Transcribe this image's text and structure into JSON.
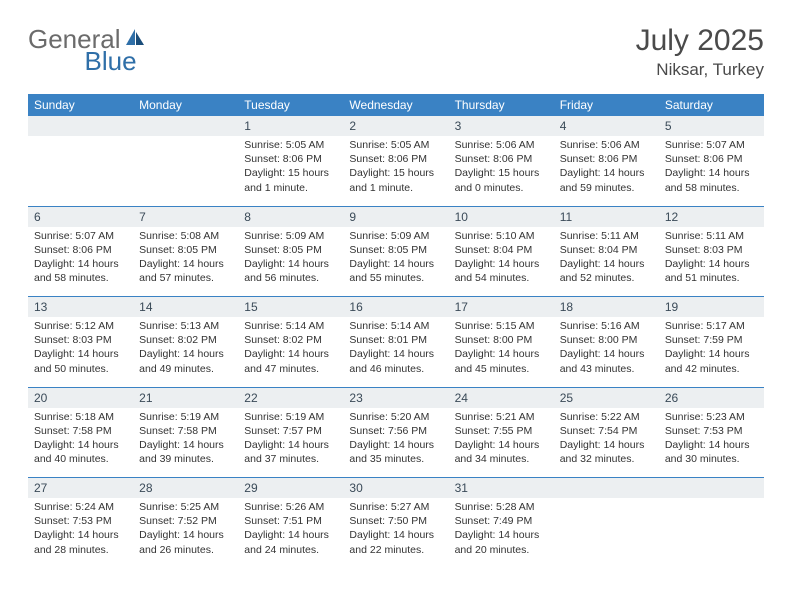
{
  "logo": {
    "general": "General",
    "blue": "Blue"
  },
  "title": "July 2025",
  "location": "Niksar, Turkey",
  "colors": {
    "header_bg": "#3a82c4",
    "header_text": "#ffffff",
    "daynum_bg": "#eceff1",
    "body_text": "#333333",
    "logo_gray": "#6b6b6b",
    "logo_blue": "#2f6fa8"
  },
  "dow": [
    "Sunday",
    "Monday",
    "Tuesday",
    "Wednesday",
    "Thursday",
    "Friday",
    "Saturday"
  ],
  "weeks": [
    [
      null,
      null,
      {
        "n": "1",
        "sr": "Sunrise: 5:05 AM",
        "ss": "Sunset: 8:06 PM",
        "dl": "Daylight: 15 hours and 1 minute."
      },
      {
        "n": "2",
        "sr": "Sunrise: 5:05 AM",
        "ss": "Sunset: 8:06 PM",
        "dl": "Daylight: 15 hours and 1 minute."
      },
      {
        "n": "3",
        "sr": "Sunrise: 5:06 AM",
        "ss": "Sunset: 8:06 PM",
        "dl": "Daylight: 15 hours and 0 minutes."
      },
      {
        "n": "4",
        "sr": "Sunrise: 5:06 AM",
        "ss": "Sunset: 8:06 PM",
        "dl": "Daylight: 14 hours and 59 minutes."
      },
      {
        "n": "5",
        "sr": "Sunrise: 5:07 AM",
        "ss": "Sunset: 8:06 PM",
        "dl": "Daylight: 14 hours and 58 minutes."
      }
    ],
    [
      {
        "n": "6",
        "sr": "Sunrise: 5:07 AM",
        "ss": "Sunset: 8:06 PM",
        "dl": "Daylight: 14 hours and 58 minutes."
      },
      {
        "n": "7",
        "sr": "Sunrise: 5:08 AM",
        "ss": "Sunset: 8:05 PM",
        "dl": "Daylight: 14 hours and 57 minutes."
      },
      {
        "n": "8",
        "sr": "Sunrise: 5:09 AM",
        "ss": "Sunset: 8:05 PM",
        "dl": "Daylight: 14 hours and 56 minutes."
      },
      {
        "n": "9",
        "sr": "Sunrise: 5:09 AM",
        "ss": "Sunset: 8:05 PM",
        "dl": "Daylight: 14 hours and 55 minutes."
      },
      {
        "n": "10",
        "sr": "Sunrise: 5:10 AM",
        "ss": "Sunset: 8:04 PM",
        "dl": "Daylight: 14 hours and 54 minutes."
      },
      {
        "n": "11",
        "sr": "Sunrise: 5:11 AM",
        "ss": "Sunset: 8:04 PM",
        "dl": "Daylight: 14 hours and 52 minutes."
      },
      {
        "n": "12",
        "sr": "Sunrise: 5:11 AM",
        "ss": "Sunset: 8:03 PM",
        "dl": "Daylight: 14 hours and 51 minutes."
      }
    ],
    [
      {
        "n": "13",
        "sr": "Sunrise: 5:12 AM",
        "ss": "Sunset: 8:03 PM",
        "dl": "Daylight: 14 hours and 50 minutes."
      },
      {
        "n": "14",
        "sr": "Sunrise: 5:13 AM",
        "ss": "Sunset: 8:02 PM",
        "dl": "Daylight: 14 hours and 49 minutes."
      },
      {
        "n": "15",
        "sr": "Sunrise: 5:14 AM",
        "ss": "Sunset: 8:02 PM",
        "dl": "Daylight: 14 hours and 47 minutes."
      },
      {
        "n": "16",
        "sr": "Sunrise: 5:14 AM",
        "ss": "Sunset: 8:01 PM",
        "dl": "Daylight: 14 hours and 46 minutes."
      },
      {
        "n": "17",
        "sr": "Sunrise: 5:15 AM",
        "ss": "Sunset: 8:00 PM",
        "dl": "Daylight: 14 hours and 45 minutes."
      },
      {
        "n": "18",
        "sr": "Sunrise: 5:16 AM",
        "ss": "Sunset: 8:00 PM",
        "dl": "Daylight: 14 hours and 43 minutes."
      },
      {
        "n": "19",
        "sr": "Sunrise: 5:17 AM",
        "ss": "Sunset: 7:59 PM",
        "dl": "Daylight: 14 hours and 42 minutes."
      }
    ],
    [
      {
        "n": "20",
        "sr": "Sunrise: 5:18 AM",
        "ss": "Sunset: 7:58 PM",
        "dl": "Daylight: 14 hours and 40 minutes."
      },
      {
        "n": "21",
        "sr": "Sunrise: 5:19 AM",
        "ss": "Sunset: 7:58 PM",
        "dl": "Daylight: 14 hours and 39 minutes."
      },
      {
        "n": "22",
        "sr": "Sunrise: 5:19 AM",
        "ss": "Sunset: 7:57 PM",
        "dl": "Daylight: 14 hours and 37 minutes."
      },
      {
        "n": "23",
        "sr": "Sunrise: 5:20 AM",
        "ss": "Sunset: 7:56 PM",
        "dl": "Daylight: 14 hours and 35 minutes."
      },
      {
        "n": "24",
        "sr": "Sunrise: 5:21 AM",
        "ss": "Sunset: 7:55 PM",
        "dl": "Daylight: 14 hours and 34 minutes."
      },
      {
        "n": "25",
        "sr": "Sunrise: 5:22 AM",
        "ss": "Sunset: 7:54 PM",
        "dl": "Daylight: 14 hours and 32 minutes."
      },
      {
        "n": "26",
        "sr": "Sunrise: 5:23 AM",
        "ss": "Sunset: 7:53 PM",
        "dl": "Daylight: 14 hours and 30 minutes."
      }
    ],
    [
      {
        "n": "27",
        "sr": "Sunrise: 5:24 AM",
        "ss": "Sunset: 7:53 PM",
        "dl": "Daylight: 14 hours and 28 minutes."
      },
      {
        "n": "28",
        "sr": "Sunrise: 5:25 AM",
        "ss": "Sunset: 7:52 PM",
        "dl": "Daylight: 14 hours and 26 minutes."
      },
      {
        "n": "29",
        "sr": "Sunrise: 5:26 AM",
        "ss": "Sunset: 7:51 PM",
        "dl": "Daylight: 14 hours and 24 minutes."
      },
      {
        "n": "30",
        "sr": "Sunrise: 5:27 AM",
        "ss": "Sunset: 7:50 PM",
        "dl": "Daylight: 14 hours and 22 minutes."
      },
      {
        "n": "31",
        "sr": "Sunrise: 5:28 AM",
        "ss": "Sunset: 7:49 PM",
        "dl": "Daylight: 14 hours and 20 minutes."
      },
      null,
      null
    ]
  ]
}
